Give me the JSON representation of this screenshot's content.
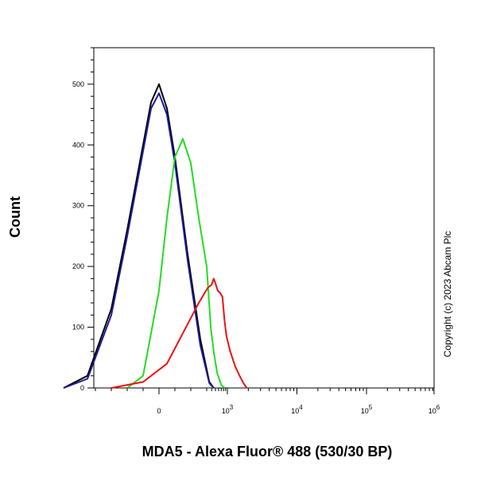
{
  "chart_data": {
    "type": "line",
    "title": "",
    "xlabel": "MDA5 - Alexa Fluor® 488 (530/30 BP)",
    "ylabel": "Count",
    "xscale": "biexponential",
    "ylim": [
      0,
      560
    ],
    "yticks": [
      0,
      100,
      200,
      300,
      400,
      500
    ],
    "ytick_labels": [
      "0",
      "100",
      "200",
      "300",
      "400",
      "500"
    ],
    "xticks": [
      0,
      1000,
      10000,
      100000,
      1000000
    ],
    "xtick_labels": [
      {
        "base": "0",
        "sup": ""
      },
      {
        "base": "10",
        "sup": "3"
      },
      {
        "base": "10",
        "sup": "4"
      },
      {
        "base": "10",
        "sup": "5"
      },
      {
        "base": "10",
        "sup": "6"
      }
    ],
    "grid": false,
    "series": [
      {
        "color": "#000000",
        "x": [
          -600,
          -450,
          -300,
          -200,
          -100,
          -50,
          0,
          50,
          100,
          180,
          260,
          350,
          450
        ],
        "y": [
          0,
          20,
          130,
          260,
          400,
          470,
          500,
          460,
          380,
          220,
          80,
          10,
          0
        ]
      },
      {
        "color": "#1a1a99",
        "x": [
          -600,
          -450,
          -300,
          -200,
          -100,
          -50,
          0,
          50,
          100,
          180,
          260,
          350,
          450
        ],
        "y": [
          0,
          15,
          120,
          250,
          390,
          460,
          485,
          450,
          370,
          210,
          70,
          8,
          0
        ]
      },
      {
        "color": "#22dd22",
        "x": [
          -200,
          -100,
          0,
          50,
          100,
          150,
          200,
          250,
          300,
          380,
          450,
          550,
          700,
          850
        ],
        "y": [
          0,
          20,
          160,
          280,
          380,
          410,
          370,
          280,
          200,
          100,
          60,
          25,
          5,
          0
        ]
      },
      {
        "color": "#ee1111",
        "x": [
          -300,
          -100,
          50,
          150,
          250,
          320,
          400,
          450,
          500,
          570,
          650,
          750,
          850,
          950,
          1100,
          1300,
          1500,
          1700,
          1900
        ],
        "y": [
          0,
          10,
          40,
          90,
          140,
          165,
          170,
          180,
          172,
          160,
          157,
          150,
          110,
          85,
          60,
          35,
          20,
          8,
          0
        ]
      }
    ],
    "annotations": [
      "Copyright (c) 2023 Abcam Plc"
    ]
  }
}
